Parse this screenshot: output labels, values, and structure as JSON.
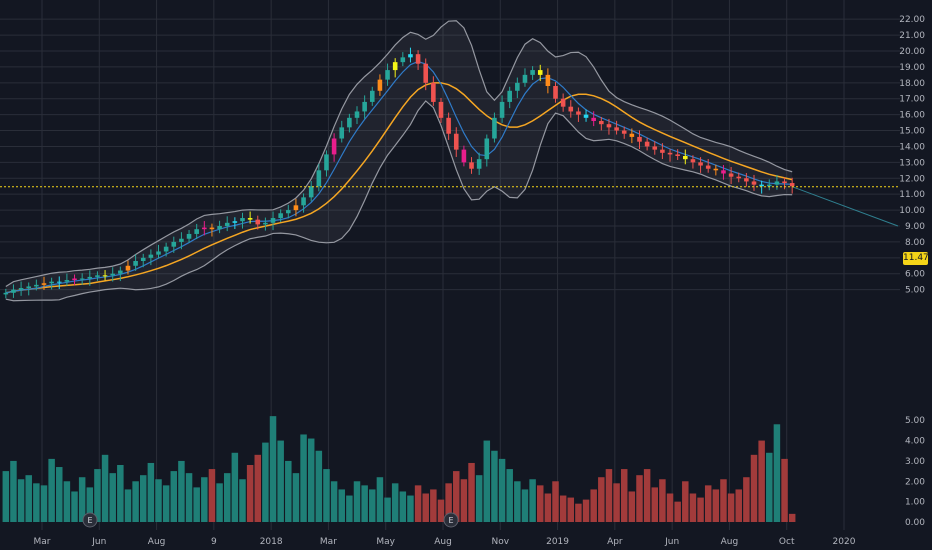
{
  "chart_data": {
    "type": "candlestick",
    "y_ticks": [
      "22.00",
      "21.00",
      "20.00",
      "19.00",
      "18.00",
      "17.00",
      "16.00",
      "15.00",
      "14.00",
      "13.00",
      "12.00",
      "11.00",
      "10.00",
      "9.00",
      "8.00",
      "7.00",
      "6.00",
      "5.00"
    ],
    "ylim": [
      4.6,
      22.2
    ],
    "volume_ticks": [
      "5.00",
      "4.00",
      "3.00",
      "2.00",
      "1.00",
      "0.00"
    ],
    "volume_lim": [
      0,
      5.6
    ],
    "x_ticks": [
      "Mar",
      "Jun",
      "Aug",
      "9",
      "2018",
      "Mar",
      "May",
      "Aug",
      "Nov",
      "2019",
      "Apr",
      "Jun",
      "Aug",
      "Oct",
      "2020"
    ],
    "last_price": "11.47",
    "last_price_value": 11.47,
    "earnings_marker": "E",
    "grid": true,
    "colors": {
      "background": "#131722",
      "up": "#26a69a",
      "down": "#ef5350",
      "up_volume": "#1f7f77",
      "down_volume": "#a23b3b",
      "band": "#9598a1",
      "ma_slow": "#f5a623",
      "ma_fast": "#2f7bc9",
      "price_line": "#f5d518",
      "highlight_orange": "#ff8c1a",
      "highlight_magenta": "#e91e8c",
      "highlight_yellow": "#f5f518",
      "highlight_cyan": "#26d7f0"
    },
    "closes": [
      4.8,
      5.0,
      5.1,
      5.2,
      5.3,
      5.4,
      5.5,
      5.5,
      5.6,
      5.7,
      5.7,
      5.8,
      5.9,
      5.9,
      6.0,
      6.2,
      6.5,
      6.8,
      7.0,
      7.2,
      7.4,
      7.7,
      8.0,
      8.2,
      8.5,
      8.8,
      8.9,
      8.8,
      9.0,
      9.2,
      9.3,
      9.5,
      9.4,
      9.1,
      9.2,
      9.5,
      9.8,
      10.0,
      10.3,
      10.8,
      11.5,
      12.5,
      13.5,
      14.5,
      15.2,
      15.8,
      16.2,
      16.8,
      17.5,
      18.2,
      18.8,
      19.3,
      19.6,
      19.8,
      19.2,
      18.0,
      16.8,
      15.8,
      14.8,
      13.8,
      13.0,
      12.6,
      13.2,
      14.5,
      15.8,
      16.8,
      17.5,
      18.0,
      18.5,
      18.8,
      18.5,
      17.8,
      17.0,
      16.5,
      16.2,
      16.0,
      15.8,
      15.6,
      15.4,
      15.2,
      15.0,
      14.8,
      14.6,
      14.3,
      14.0,
      13.8,
      13.6,
      13.5,
      13.4,
      13.2,
      13.0,
      12.8,
      12.6,
      12.5,
      12.3,
      12.1,
      12.0,
      11.8,
      11.6,
      11.5,
      11.6,
      11.8,
      11.7,
      11.5
    ],
    "volumes": [
      2.5,
      3.0,
      2.1,
      2.3,
      1.9,
      1.8,
      3.1,
      2.7,
      2.0,
      1.5,
      2.2,
      1.7,
      2.6,
      3.3,
      2.4,
      2.8,
      1.6,
      2.0,
      2.3,
      2.9,
      2.1,
      1.8,
      2.5,
      3.0,
      2.4,
      1.7,
      2.2,
      2.6,
      1.9,
      2.4,
      3.4,
      2.1,
      2.8,
      3.3,
      3.9,
      5.2,
      4.0,
      3.0,
      2.4,
      4.3,
      4.1,
      3.5,
      2.6,
      2.0,
      1.6,
      1.3,
      2.0,
      1.8,
      1.6,
      2.2,
      1.2,
      1.9,
      1.5,
      1.3,
      1.8,
      1.4,
      1.6,
      1.1,
      1.9,
      2.5,
      2.1,
      2.9,
      2.3,
      4.0,
      3.5,
      3.1,
      2.6,
      2.0,
      1.6,
      2.1,
      1.8,
      1.4,
      2.0,
      1.3,
      1.2,
      0.9,
      1.1,
      1.6,
      2.2,
      2.6,
      1.9,
      2.6,
      1.5,
      2.3,
      2.6,
      1.7,
      2.1,
      1.4,
      1.0,
      2.0,
      1.4,
      1.2,
      1.8,
      1.6,
      2.1,
      1.4,
      1.6,
      2.2,
      3.3,
      4.0,
      3.4,
      4.8,
      3.1,
      0.4
    ]
  }
}
